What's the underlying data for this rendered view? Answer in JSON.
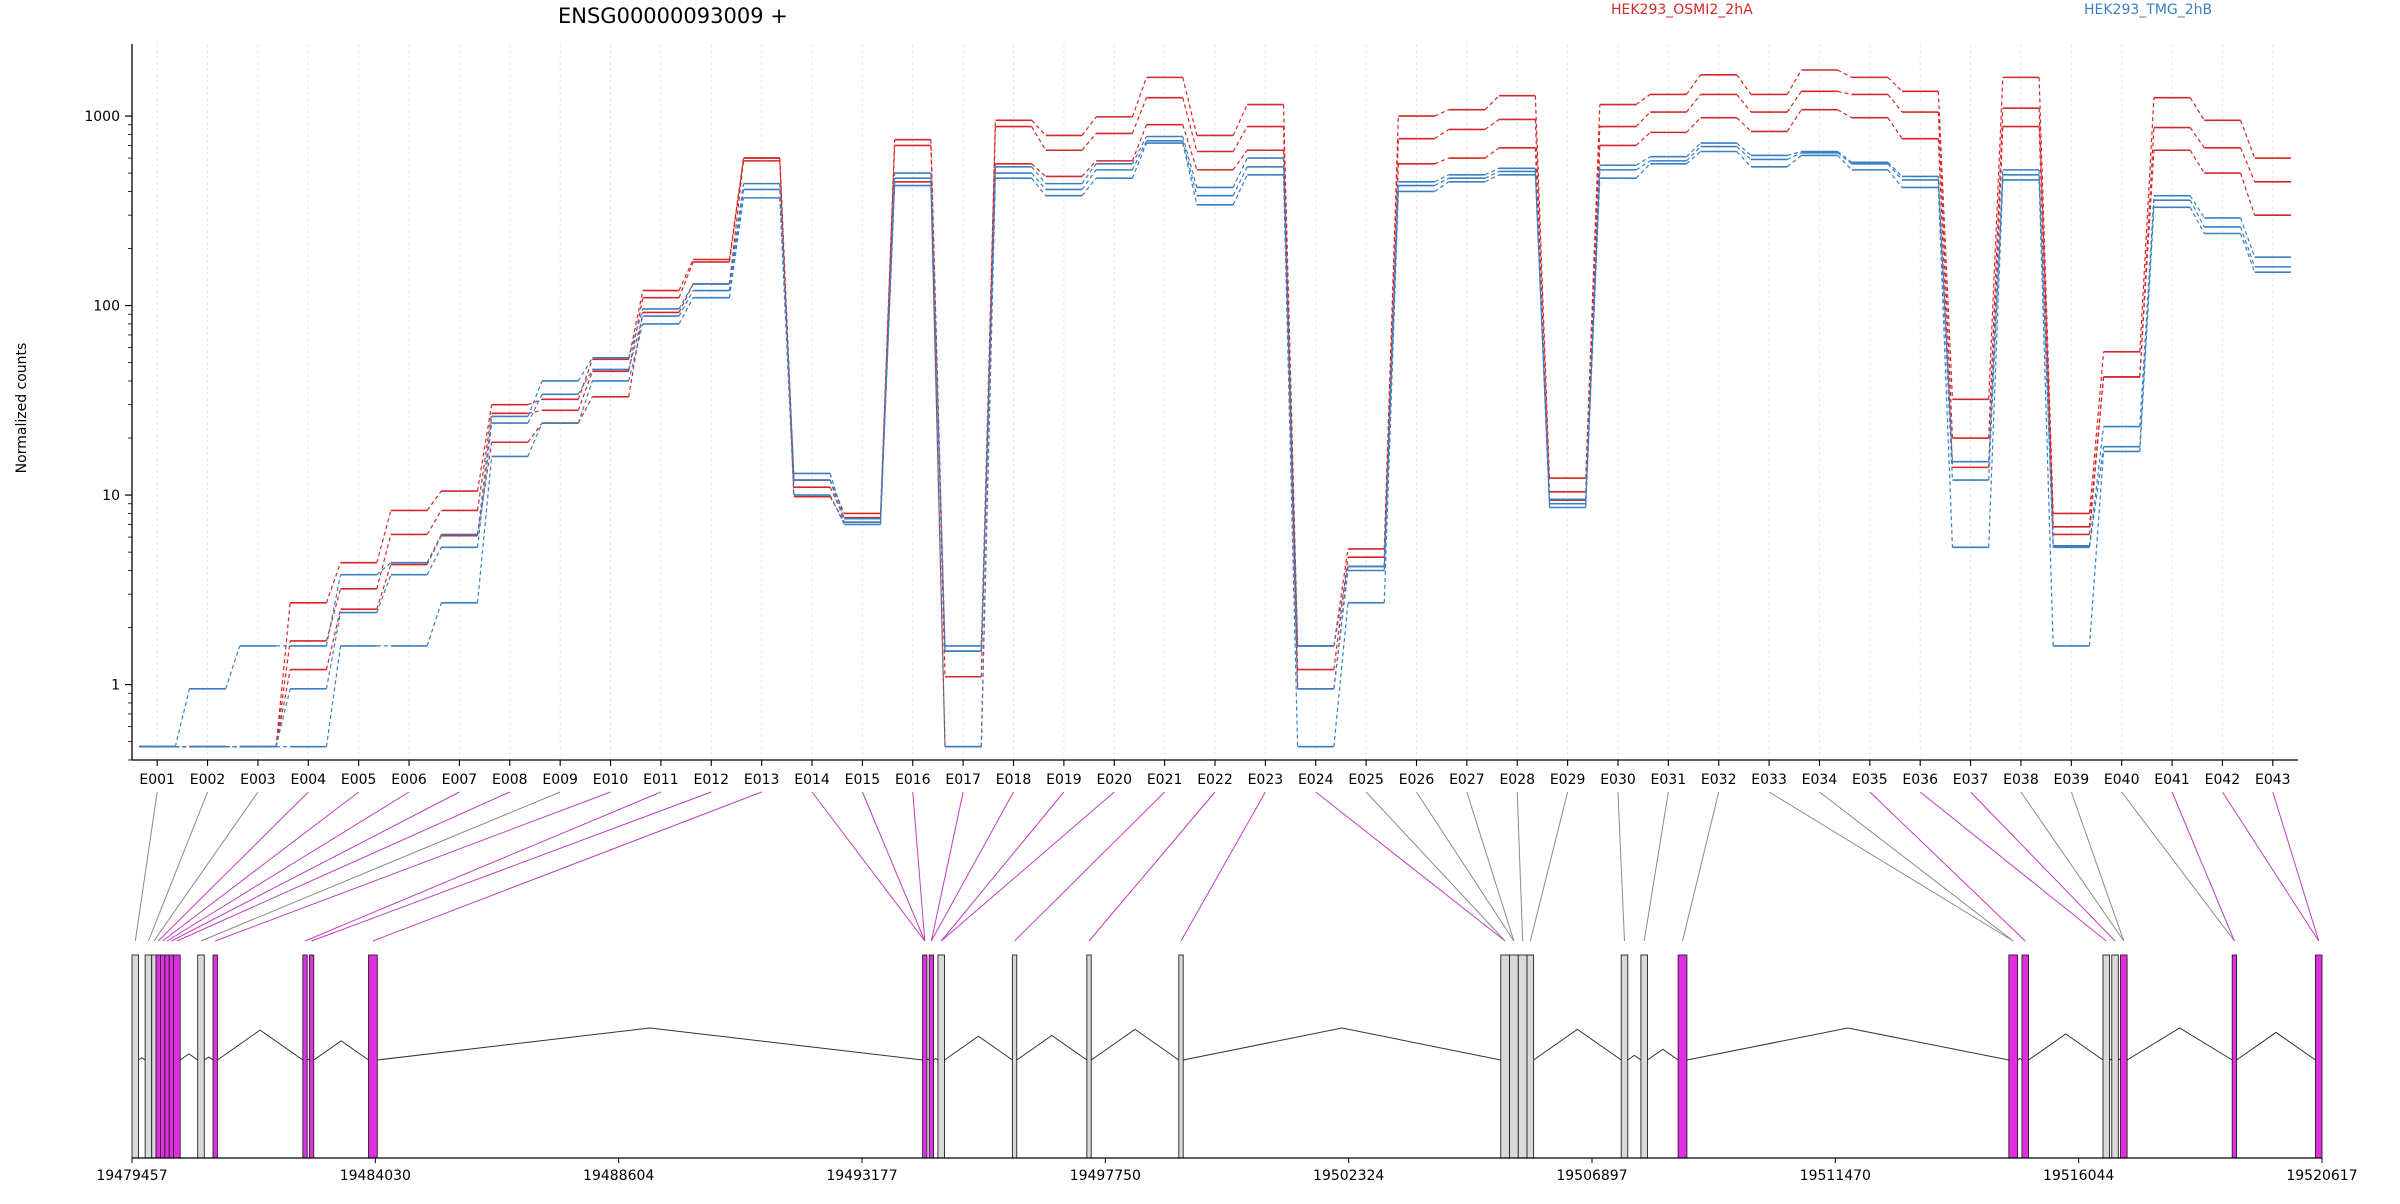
{
  "chart_data": {
    "type": "line",
    "title": "ENSG00000093009 +",
    "ylabel": "Normalized counts",
    "y_scale": "log",
    "ylim": [
      0.4,
      2400
    ],
    "y_ticks": [
      1,
      10,
      100,
      1000
    ],
    "y_tick_labels": [
      "1",
      "10",
      "100",
      "1000"
    ],
    "grid": true,
    "legend": [
      {
        "name": "HEK293_OSMI2_2hA",
        "color": "#d62728"
      },
      {
        "name": "HEK293_TMG_2hB",
        "color": "#3a7fc1"
      }
    ],
    "categories": [
      "E001",
      "E002",
      "E003",
      "E004",
      "E005",
      "E006",
      "E007",
      "E008",
      "E009",
      "E010",
      "E011",
      "E012",
      "E013",
      "E014",
      "E015",
      "E016",
      "E017",
      "E018",
      "E019",
      "E020",
      "E021",
      "E022",
      "E023",
      "E024",
      "E025",
      "E026",
      "E027",
      "E028",
      "E029",
      "E030",
      "E031",
      "E032",
      "E033",
      "E034",
      "E035",
      "E036",
      "E037",
      "E038",
      "E039",
      "E040",
      "E041",
      "E042",
      "E043"
    ],
    "series": [
      {
        "group": 0,
        "color": "#d62728",
        "values": [
          0.47,
          0.47,
          0.47,
          2.7,
          4.4,
          8.3,
          10.5,
          30,
          32,
          52,
          120,
          175,
          600,
          12,
          8,
          750,
          1.5,
          950,
          790,
          990,
          1600,
          790,
          1150,
          1.6,
          5.2,
          1000,
          1080,
          1280,
          12.3,
          1150,
          1300,
          1650,
          1300,
          1750,
          1600,
          1350,
          32,
          1600,
          8,
          57,
          1250,
          950,
          600
        ]
      },
      {
        "group": 0,
        "color": "#d62728",
        "values": [
          0.47,
          0.47,
          0.47,
          1.7,
          3.2,
          6.2,
          8.3,
          27,
          28,
          45,
          110,
          170,
          600,
          11,
          7.6,
          700,
          1.1,
          880,
          660,
          810,
          1250,
          650,
          880,
          1.2,
          4.7,
          760,
          850,
          960,
          10.4,
          880,
          1050,
          1300,
          1050,
          1350,
          1300,
          1050,
          20,
          1100,
          6.8,
          42,
          870,
          680,
          450
        ]
      },
      {
        "group": 0,
        "color": "#d62728",
        "values": [
          0.47,
          0.47,
          0.47,
          1.2,
          2.5,
          4.3,
          6.1,
          19,
          24,
          33,
          92,
          130,
          580,
          9.8,
          7.2,
          450,
          0.47,
          560,
          480,
          580,
          900,
          520,
          660,
          0.95,
          4.2,
          560,
          600,
          680,
          9.4,
          700,
          820,
          980,
          830,
          1080,
          980,
          760,
          14,
          880,
          6.2,
          42,
          660,
          500,
          300
        ]
      },
      {
        "group": 1,
        "color": "#3a7fc1",
        "values": [
          0.47,
          0.95,
          1.6,
          1.6,
          3.8,
          4.4,
          6.2,
          26,
          40,
          53,
          96,
          130,
          440,
          13,
          7.5,
          500,
          1.6,
          540,
          440,
          560,
          780,
          420,
          600,
          1.6,
          4.2,
          450,
          490,
          530,
          9.5,
          550,
          610,
          720,
          620,
          650,
          570,
          480,
          15,
          520,
          5.4,
          23,
          380,
          290,
          180
        ]
      },
      {
        "group": 1,
        "color": "#3a7fc1",
        "values": [
          0.47,
          0.47,
          0.47,
          0.95,
          2.4,
          3.8,
          5.3,
          24,
          34,
          46,
          88,
          120,
          410,
          12,
          7.2,
          470,
          1.5,
          500,
          410,
          520,
          740,
          380,
          540,
          0.95,
          4.0,
          430,
          470,
          510,
          9.0,
          520,
          580,
          690,
          590,
          640,
          560,
          460,
          12,
          490,
          5.3,
          18,
          360,
          260,
          160
        ]
      },
      {
        "group": 1,
        "color": "#3a7fc1",
        "values": [
          0.47,
          0.47,
          0.47,
          0.47,
          1.6,
          1.6,
          2.7,
          16,
          24,
          40,
          80,
          110,
          370,
          10,
          7.0,
          430,
          0.47,
          470,
          380,
          470,
          720,
          340,
          490,
          0.47,
          2.7,
          400,
          450,
          490,
          8.6,
          470,
          560,
          650,
          540,
          620,
          520,
          420,
          5.3,
          460,
          1.6,
          17,
          330,
          240,
          150
        ]
      }
    ],
    "gene_model": {
      "x_tick_labels": [
        "19479457",
        "19484030",
        "19488604",
        "19493177",
        "19497750",
        "19502324",
        "19506897",
        "19511470",
        "19516044",
        "19520617"
      ]
    }
  }
}
